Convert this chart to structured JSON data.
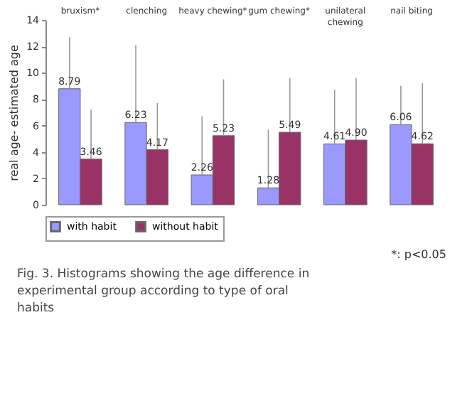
{
  "chart_data": {
    "type": "bar",
    "ylabel": "real age- estimated age",
    "categories": [
      "bruxism*",
      "clenching",
      "heavy chewing*",
      "gum chewing*",
      "unilateral\nchewing",
      "nail biting"
    ],
    "series": [
      {
        "name": "with habit",
        "color": "#9999ff",
        "values": [
          8.79,
          6.23,
          2.26,
          1.28,
          4.61,
          6.06
        ],
        "value_labels": [
          "8.79",
          "6.23",
          "2.26",
          "1.28",
          "4.61",
          "6.06"
        ],
        "errors": [
          [
            8.79,
            12.7
          ],
          [
            6.23,
            12.1
          ],
          [
            2.26,
            6.7
          ],
          [
            1.28,
            5.7
          ],
          [
            4.61,
            8.7
          ],
          [
            6.06,
            9.0
          ]
        ]
      },
      {
        "name": "without habit",
        "color": "#993366",
        "values": [
          3.46,
          4.17,
          5.23,
          5.49,
          4.9,
          4.62
        ],
        "value_labels": [
          "3.46",
          "4.17",
          "5.23",
          "5.49",
          "4.90",
          "4.62"
        ],
        "errors": [
          [
            3.46,
            7.2
          ],
          [
            4.17,
            7.7
          ],
          [
            5.23,
            9.5
          ],
          [
            5.49,
            9.6
          ],
          [
            4.9,
            9.6
          ],
          [
            4.62,
            9.2
          ]
        ]
      }
    ],
    "ylim": [
      0,
      14
    ],
    "yticks": [
      0,
      2,
      4,
      6,
      8,
      10,
      12,
      14
    ],
    "legend": "bottom",
    "annotations": [
      "*: p<0.05",
      "Fig.  3.  Histograms showing the age difference in experimental group according to type of oral habits"
    ]
  }
}
